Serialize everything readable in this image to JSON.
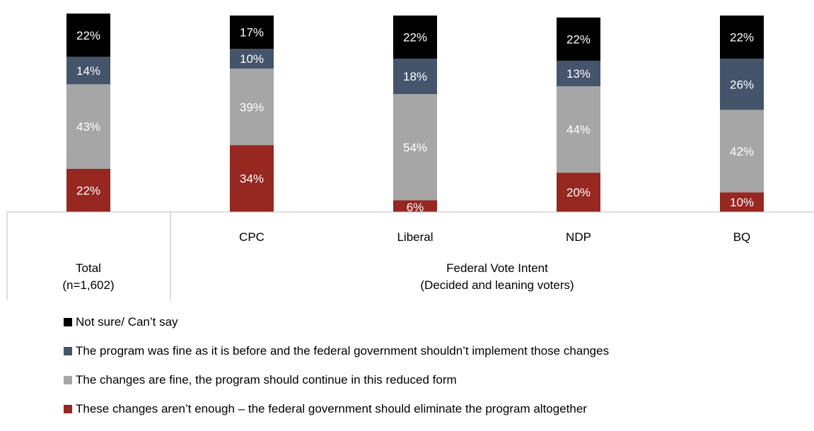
{
  "chart_data": {
    "type": "bar",
    "stacked": true,
    "percent": true,
    "categories": [
      "",
      "CPC",
      "Liberal",
      "NDP",
      "BQ"
    ],
    "group_labels": [
      {
        "lines": [
          "Total",
          "(n=1,602)"
        ]
      },
      {
        "lines": [
          "Federal Vote Intent",
          "(Decided and leaning voters)"
        ]
      }
    ],
    "ylim": [
      0,
      100
    ],
    "grid": false,
    "legend_position": "bottom",
    "series": [
      {
        "name": "These changes aren’t enough – the federal government should eliminate the program altogether",
        "color": "#962721",
        "label_color": "#ffffff",
        "values": [
          22,
          34,
          6,
          20,
          10
        ]
      },
      {
        "name": "The changes are fine, the program should continue in this reduced form",
        "color": "#a6a6a6",
        "label_color": "#ffffff",
        "values": [
          43,
          39,
          54,
          44,
          42
        ]
      },
      {
        "name": "The program was fine as it is before and the federal government shouldn’t implement those changes",
        "color": "#44546a",
        "label_color": "#ffffff",
        "values": [
          14,
          10,
          18,
          13,
          26
        ]
      },
      {
        "name": "Not sure/ Can’t say",
        "color": "#000000",
        "label_color": "#ffffff",
        "values": [
          22,
          17,
          22,
          22,
          22
        ]
      }
    ],
    "value_labels": [
      [
        "22%",
        "34%",
        "6%",
        "20%",
        "10%"
      ],
      [
        "43%",
        "39%",
        "54%",
        "44%",
        "42%"
      ],
      [
        "14%",
        "10%",
        "18%",
        "13%",
        "26%"
      ],
      [
        "22%",
        "17%",
        "22%",
        "22%",
        "22%"
      ]
    ]
  }
}
